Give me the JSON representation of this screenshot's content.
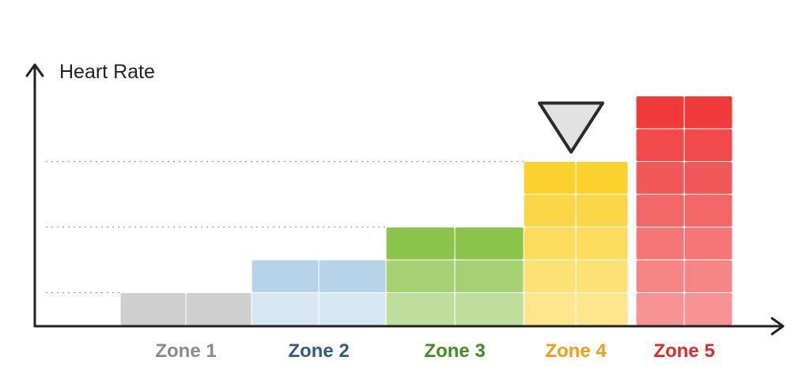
{
  "chart_data": {
    "type": "bar",
    "title": "",
    "ylabel": "Heart Rate",
    "xlabel": "",
    "categories": [
      "Zone 1",
      "Zone 2",
      "Zone 3",
      "Zone 4",
      "Zone 5"
    ],
    "values": [
      1,
      2,
      3,
      5,
      7
    ],
    "value_unit": "blocks",
    "reference_levels": [
      1,
      3,
      5
    ],
    "ylim": [
      0,
      7.5
    ],
    "grid": false,
    "legend": "none",
    "current_zone_marker": "Zone 4",
    "colors": {
      "Zone 1": "#cfcfcf",
      "Zone 2": "#b7d3ea",
      "Zone 3": "#8cc34a",
      "Zone 4": "#fbd12e",
      "Zone 5": "#f13b3b"
    },
    "label_colors": {
      "Zone 1": "#8a8a8a",
      "Zone 2": "#2f5b8c",
      "Zone 3": "#3f8f1e",
      "Zone 4": "#f39c12",
      "Zone 5": "#e02a2a"
    },
    "marker_icon": "downward-triangle-marker-icon"
  }
}
